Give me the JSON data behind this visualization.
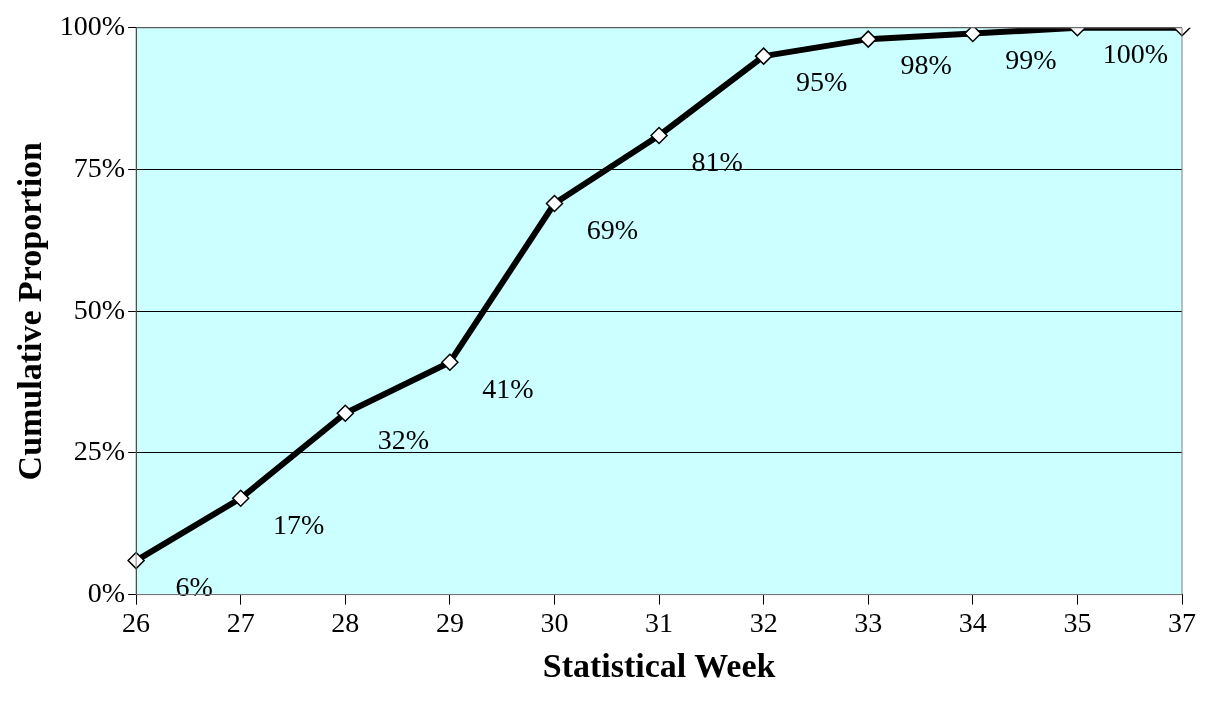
{
  "chart_data": {
    "type": "line",
    "xlabel": "Statistical Week",
    "ylabel": "Cumulative Proportion",
    "categories": [
      "26",
      "27",
      "28",
      "29",
      "30",
      "31",
      "32",
      "33",
      "34",
      "35",
      "37"
    ],
    "series": [
      {
        "color": "#000000",
        "values": [
          6,
          17,
          32,
          41,
          69,
          81,
          95,
          98,
          99,
          100,
          100
        ],
        "value_labels": [
          "6%",
          "17%",
          "32%",
          "41%",
          "69%",
          "81%",
          "95%",
          "98%",
          "99%",
          "100%",
          null
        ]
      }
    ],
    "ylim": [
      0,
      100
    ],
    "yticks": [
      {
        "value": 0,
        "label": "0%"
      },
      {
        "value": 25,
        "label": "25%"
      },
      {
        "value": 50,
        "label": "50%"
      },
      {
        "value": 75,
        "label": "75%"
      },
      {
        "value": 100,
        "label": "100%"
      }
    ],
    "grid": "y",
    "legend": false,
    "marker": "diamond",
    "line_style": "solid"
  }
}
